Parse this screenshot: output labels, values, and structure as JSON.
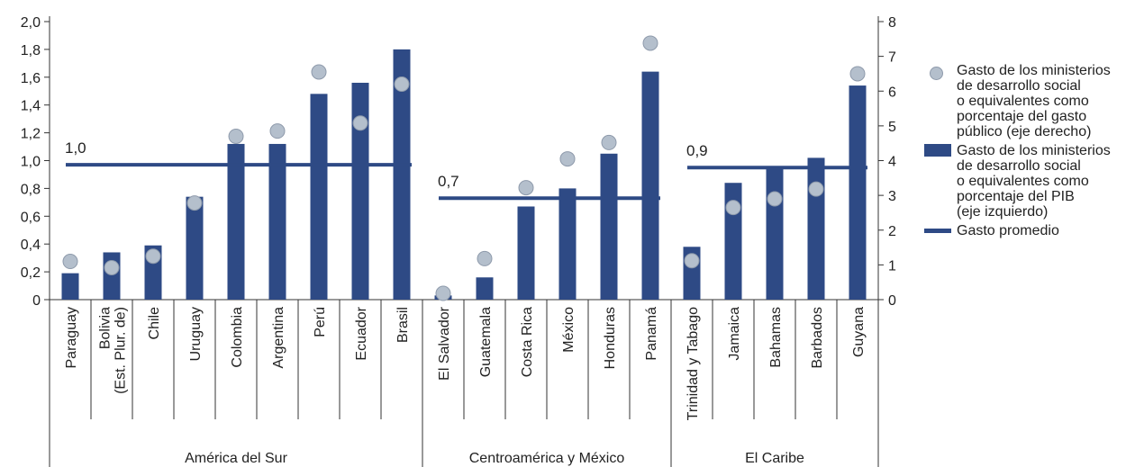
{
  "chart_data": {
    "type": "bar",
    "title": "",
    "left_axis": {
      "min": 0,
      "max": 2.0,
      "ticks": [
        "0",
        "0,2",
        "0,4",
        "0,6",
        "0,8",
        "1,0",
        "1,2",
        "1,4",
        "1,6",
        "1,8",
        "2,0"
      ]
    },
    "right_axis": {
      "min": 0,
      "max": 8,
      "ticks": [
        "0",
        "1",
        "2",
        "3",
        "4",
        "5",
        "6",
        "7",
        "8"
      ]
    },
    "categories": [
      "Paraguay",
      "Bolivia\n(Est. Plur. de)",
      "Chile",
      "Uruguay",
      "Colombia",
      "Argentina",
      "Perú",
      "Ecuador",
      "Brasil",
      "El Salvador",
      "Guatemala",
      "Costa Rica",
      "México",
      "Honduras",
      "Panamá",
      "Trinidad y Tabago",
      "Jamaica",
      "Bahamas",
      "Barbados",
      "Guyana"
    ],
    "groups": [
      {
        "name": "América del Sur",
        "count": 9,
        "average": 0.97,
        "average_label": "1,0"
      },
      {
        "name": "Centroamérica y México",
        "count": 6,
        "average": 0.73,
        "average_label": "0,7"
      },
      {
        "name": "El Caribe",
        "count": 5,
        "average": 0.95,
        "average_label": "0,9"
      }
    ],
    "series": [
      {
        "name": "Gasto de los ministerios de desarrollo social o equivalentes como porcentaje del PIB (eje izquierdo)",
        "type": "bar",
        "axis": "left",
        "color": "#2e4a85",
        "values": [
          0.19,
          0.34,
          0.39,
          0.74,
          1.12,
          1.12,
          1.48,
          1.56,
          1.8,
          0.03,
          0.16,
          0.67,
          0.8,
          1.05,
          1.64,
          0.38,
          0.84,
          0.96,
          1.02,
          1.54
        ]
      },
      {
        "name": "Gasto de los ministerios de desarrollo social o equivalentes como porcentaje del gasto público (eje derecho)",
        "type": "scatter",
        "axis": "right",
        "color": "#b4bfcc",
        "values": [
          1.1,
          0.92,
          1.25,
          2.78,
          4.7,
          4.85,
          6.55,
          5.08,
          6.2,
          0.18,
          1.18,
          3.22,
          4.05,
          4.52,
          7.38,
          1.12,
          2.65,
          2.9,
          3.18,
          6.5
        ]
      }
    ],
    "legend": {
      "placement": "right",
      "items": [
        {
          "symbol": "dot",
          "label": "Gasto de los ministerios\nde desarrollo social\no equivalentes como\nporcentaje del gasto\npúblico  (eje derecho)"
        },
        {
          "symbol": "bar",
          "label": "Gasto de los ministerios\nde desarrollo social\no equivalentes como\nporcentaje del PIB\n(eje izquierdo)"
        },
        {
          "symbol": "line",
          "label": "Gasto promedio"
        }
      ]
    },
    "colors": {
      "bar": "#2e4a85",
      "dot": "#b4bfcc",
      "dot_stroke": "#8e9aab",
      "average": "#2e4a85",
      "axis": "#333333"
    }
  }
}
